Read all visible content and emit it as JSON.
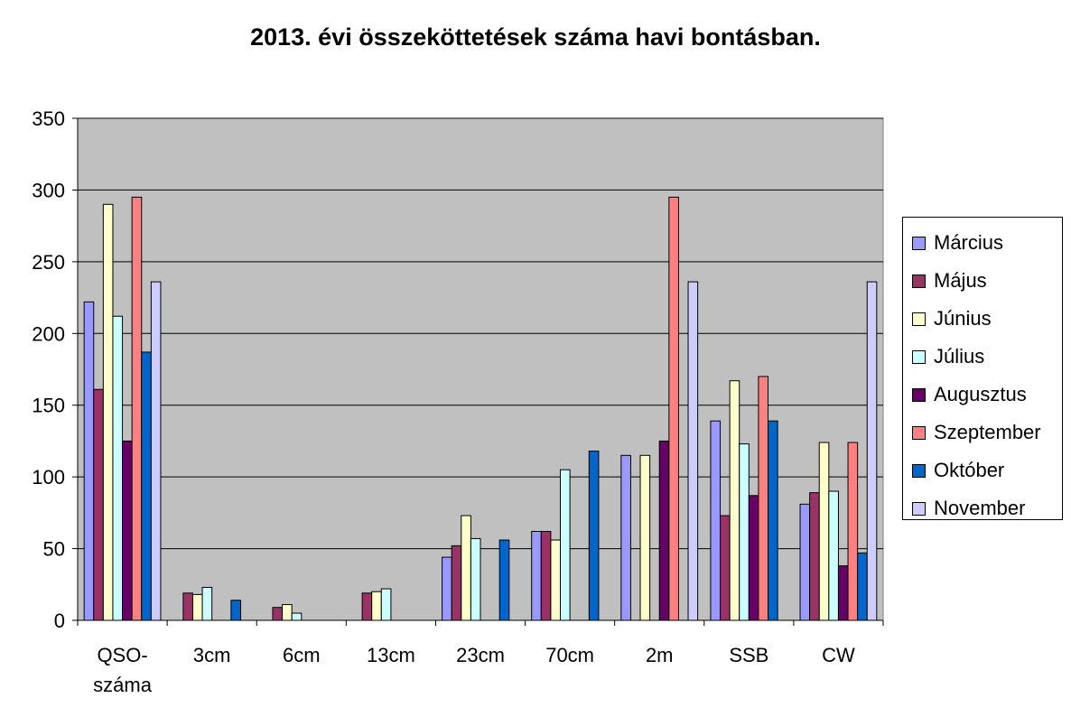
{
  "chart_data": {
    "type": "bar",
    "title": "2013. évi összeköttetések száma havi bontásban.",
    "categories": [
      "QSO-\nszáma",
      "3cm",
      "6cm",
      "13cm",
      "23cm",
      "70cm",
      "2m",
      "SSB",
      "CW"
    ],
    "ylim": [
      0,
      350
    ],
    "yticks": [
      0,
      50,
      100,
      150,
      200,
      250,
      300,
      350
    ],
    "grid": true,
    "plot_background": "#c0c0c0",
    "legend_position": "right",
    "series": [
      {
        "name": "Március",
        "color": "#9999ff",
        "values": [
          222,
          0,
          0,
          0,
          44,
          62,
          115,
          139,
          81
        ]
      },
      {
        "name": "Május",
        "color": "#993366",
        "values": [
          161,
          19,
          9,
          19,
          52,
          62,
          0,
          73,
          89
        ]
      },
      {
        "name": "Június",
        "color": "#ffffcc",
        "values": [
          290,
          18,
          11,
          20,
          73,
          56,
          115,
          167,
          124
        ]
      },
      {
        "name": "Július",
        "color": "#ccffff",
        "values": [
          212,
          23,
          5,
          22,
          57,
          105,
          0,
          123,
          90
        ]
      },
      {
        "name": "Augusztus",
        "color": "#660066",
        "values": [
          125,
          0,
          0,
          0,
          0,
          0,
          125,
          87,
          38
        ]
      },
      {
        "name": "Szeptember",
        "color": "#ff8080",
        "values": [
          295,
          0,
          0,
          0,
          0,
          0,
          295,
          170,
          124
        ]
      },
      {
        "name": "Október",
        "color": "#0066cc",
        "values": [
          187,
          14,
          0,
          0,
          56,
          118,
          0,
          139,
          47
        ]
      },
      {
        "name": "November",
        "color": "#ccccff",
        "values": [
          236,
          0,
          0,
          0,
          0,
          0,
          236,
          0,
          236
        ]
      }
    ]
  }
}
